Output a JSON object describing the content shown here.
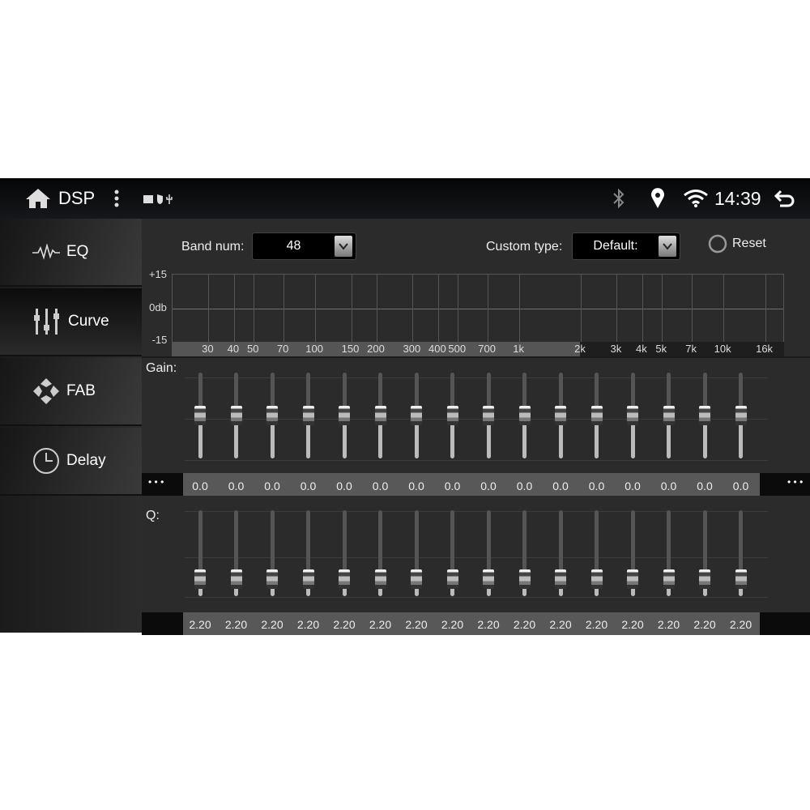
{
  "status_bar": {
    "title": "DSP",
    "time": "14:39",
    "icons": [
      "home-icon",
      "more-vert-icon",
      "image-icon",
      "shield-play-icon",
      "usb-icon",
      "bluetooth-icon",
      "location-icon",
      "wifi-icon",
      "back-icon"
    ]
  },
  "sidebar": {
    "items": [
      {
        "label": "EQ",
        "icon": "waveform-icon"
      },
      {
        "label": "Curve",
        "icon": "sliders-icon",
        "selected": true
      },
      {
        "label": "FAB",
        "icon": "fader-balance-icon"
      },
      {
        "label": "Delay",
        "icon": "clock-icon"
      }
    ]
  },
  "controls": {
    "band_label": "Band num:",
    "band_value": "48",
    "custom_label": "Custom type:",
    "custom_value": "Default:",
    "reset_label": "Reset"
  },
  "chart_data": {
    "type": "line",
    "y_ticks": [
      "+15",
      "0db",
      "-15"
    ],
    "ylim": [
      -15,
      15
    ],
    "x_scale": "log",
    "xlim": [
      20,
      20000
    ],
    "x_ticks": [
      {
        "f": 30,
        "label": "30"
      },
      {
        "f": 40,
        "label": "40"
      },
      {
        "f": 50,
        "label": "50"
      },
      {
        "f": 70,
        "label": "70"
      },
      {
        "f": 100,
        "label": "100"
      },
      {
        "f": 150,
        "label": "150"
      },
      {
        "f": 200,
        "label": "200"
      },
      {
        "f": 300,
        "label": "300"
      },
      {
        "f": 400,
        "label": "400"
      },
      {
        "f": 500,
        "label": "500"
      },
      {
        "f": 700,
        "label": "700"
      },
      {
        "f": 1000,
        "label": "1k"
      },
      {
        "f": 2000,
        "label": "2k"
      },
      {
        "f": 3000,
        "label": "3k"
      },
      {
        "f": 4000,
        "label": "4k"
      },
      {
        "f": 5000,
        "label": "5k"
      },
      {
        "f": 7000,
        "label": "7k"
      },
      {
        "f": 10000,
        "label": "10k"
      },
      {
        "f": 16000,
        "label": "16k"
      }
    ],
    "curve_gain_db": 0,
    "curve_color": "#2a8a9a"
  },
  "gain": {
    "label": "Gain:",
    "values": [
      "0.0",
      "0.0",
      "0.0",
      "0.0",
      "0.0",
      "0.0",
      "0.0",
      "0.0",
      "0.0",
      "0.0",
      "0.0",
      "0.0",
      "0.0",
      "0.0",
      "0.0",
      "0.0"
    ],
    "range": [
      -15,
      15
    ],
    "more": "• • •"
  },
  "q": {
    "label": "Q:",
    "values": [
      "2.20",
      "2.20",
      "2.20",
      "2.20",
      "2.20",
      "2.20",
      "2.20",
      "2.20",
      "2.20",
      "2.20",
      "2.20",
      "2.20",
      "2.20",
      "2.20",
      "2.20",
      "2.20"
    ],
    "level_fraction": 0.2
  }
}
